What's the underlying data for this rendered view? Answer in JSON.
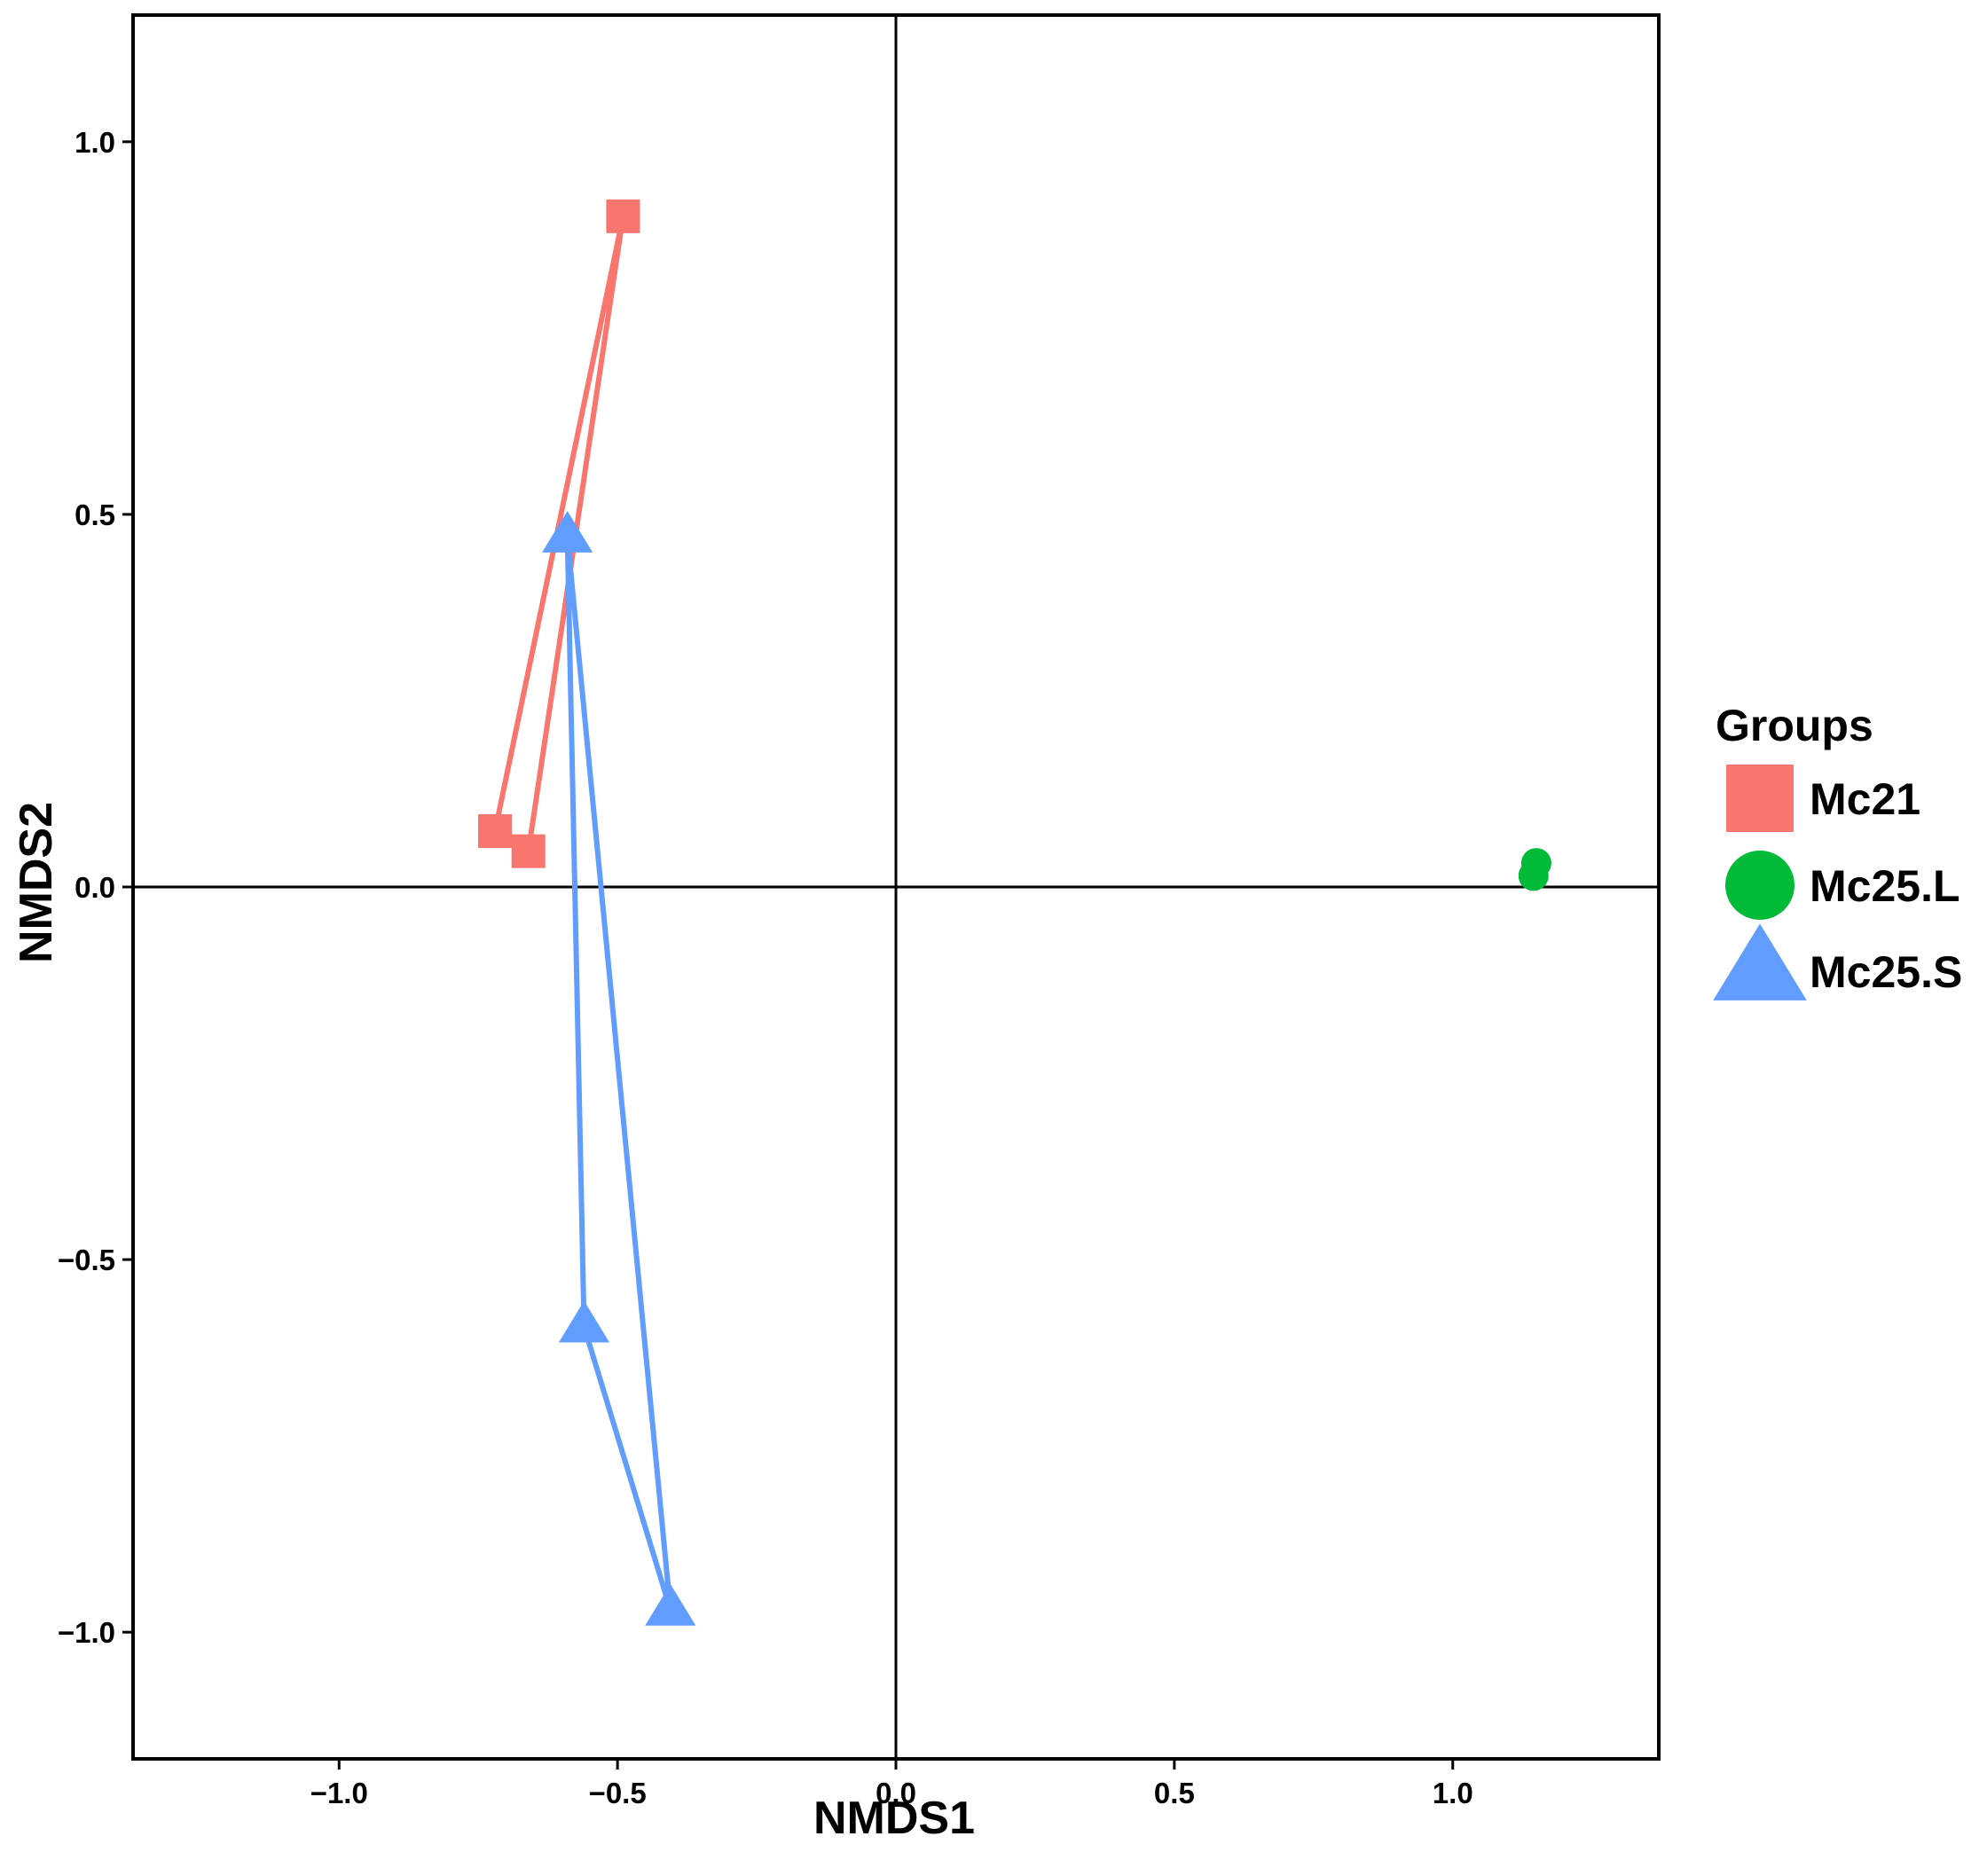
{
  "chart_data": {
    "type": "scatter",
    "xlabel": "NMDS1",
    "ylabel": "NMDS2",
    "xlim": [
      -1.37,
      1.37
    ],
    "ylim": [
      -1.17,
      1.17
    ],
    "x_ticks": [
      -1.0,
      -0.5,
      0.0,
      0.5,
      1.0
    ],
    "x_tick_labels": [
      "−1.0",
      "−0.5",
      "0.0",
      "0.5",
      "1.0"
    ],
    "y_ticks": [
      -1.0,
      -0.5,
      0.0,
      0.5,
      1.0
    ],
    "y_tick_labels": [
      "−1.0",
      "−0.5",
      "0.0",
      "0.5",
      "1.0"
    ],
    "reference_lines": {
      "x": 0,
      "y": 0
    },
    "grid": false,
    "legend": {
      "title": "Groups",
      "position": "right"
    },
    "series": [
      {
        "name": "Mc21",
        "marker": "square",
        "color": "#F8766D",
        "points": [
          {
            "x": -0.49,
            "y": 0.9
          },
          {
            "x": -0.72,
            "y": 0.075
          },
          {
            "x": -0.66,
            "y": 0.048
          }
        ]
      },
      {
        "name": "Mc25.L",
        "marker": "circle",
        "color": "#00BA38",
        "points": [
          {
            "x": 1.15,
            "y": 0.032
          },
          {
            "x": 1.145,
            "y": 0.015
          }
        ]
      },
      {
        "name": "Mc25.S",
        "marker": "triangle",
        "color": "#619CFF",
        "points": [
          {
            "x": -0.59,
            "y": 0.47
          },
          {
            "x": -0.56,
            "y": -0.59
          },
          {
            "x": -0.405,
            "y": -0.97
          }
        ]
      }
    ]
  }
}
